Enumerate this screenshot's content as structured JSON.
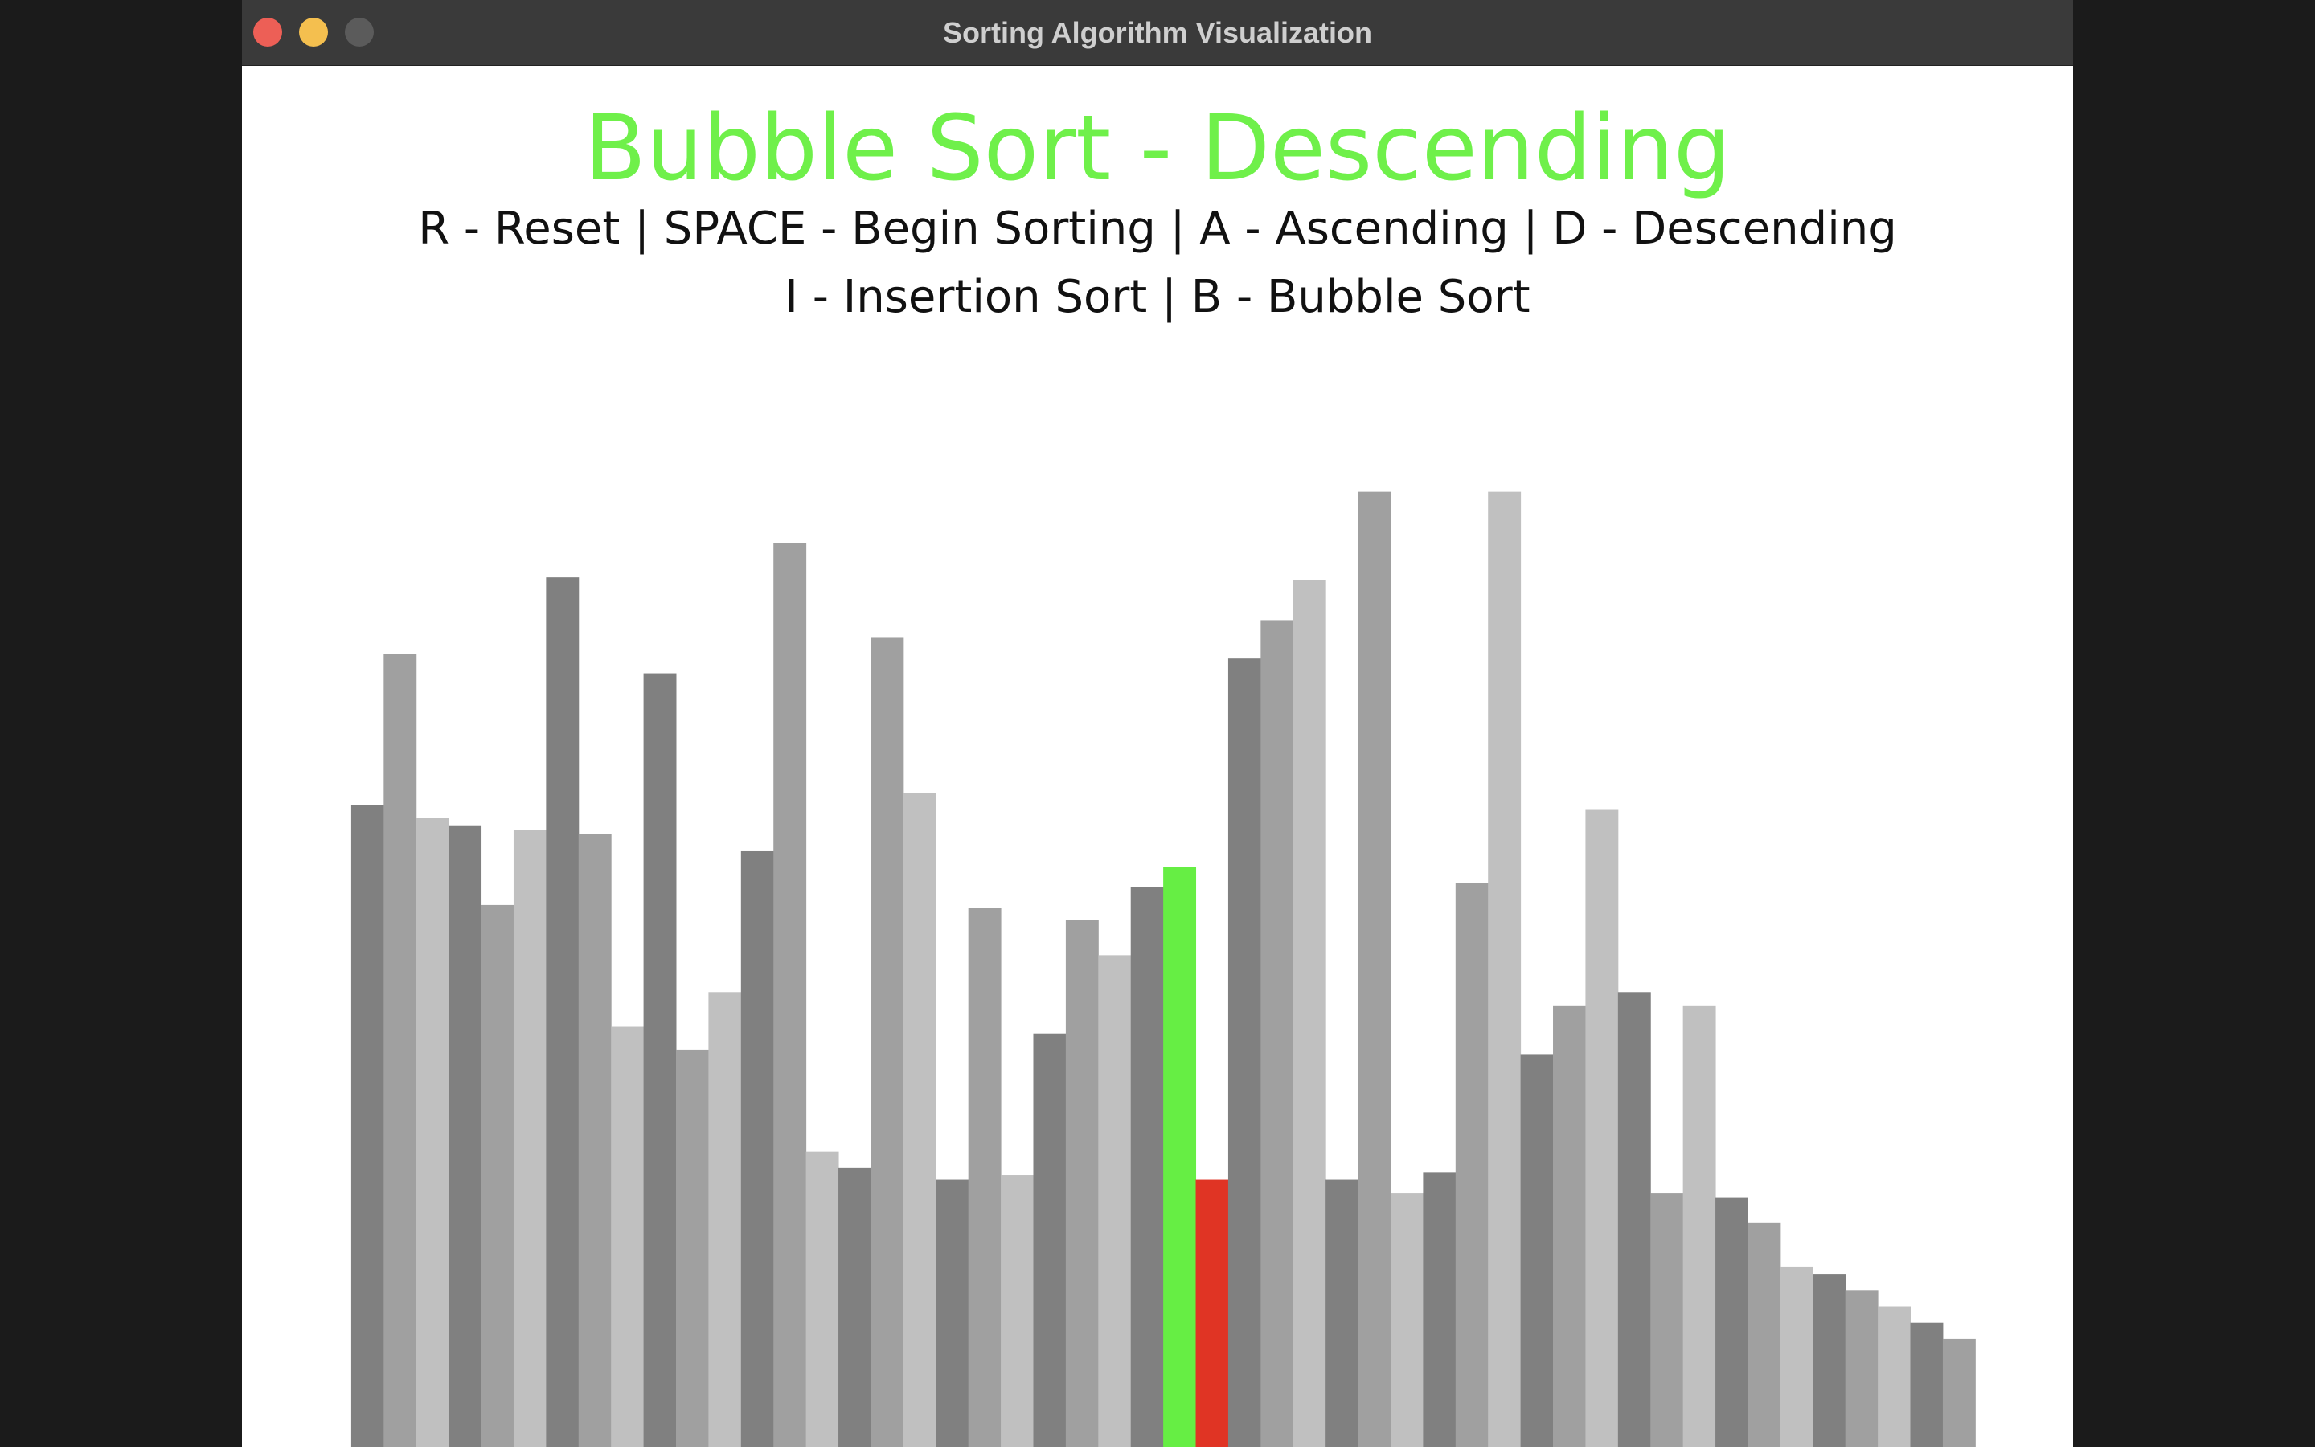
{
  "window": {
    "title": "Sorting Algorithm Visualization"
  },
  "heading": "Bubble Sort - Descending",
  "instructions": [
    "R - Reset | SPACE - Begin Sorting | A - Ascending | D - Descending",
    "I - Insertion Sort | B - Bubble Sort"
  ],
  "chart_data": {
    "type": "bar",
    "values": [
      435,
      537,
      426,
      421,
      367,
      418,
      589,
      415,
      285,
      524,
      269,
      308,
      404,
      612,
      200,
      189,
      548,
      443,
      181,
      365,
      184,
      280,
      357,
      333,
      379,
      393,
      181,
      534,
      560,
      587,
      181,
      647,
      172,
      186,
      382,
      647,
      266,
      299,
      432,
      308,
      172,
      299,
      169,
      152,
      122,
      117,
      106,
      95,
      84,
      73
    ],
    "colors": [
      "#808080",
      "#a0a0a0",
      "#c0c0c0",
      "#808080",
      "#a0a0a0",
      "#c0c0c0",
      "#808080",
      "#a0a0a0",
      "#c0c0c0",
      "#808080",
      "#a0a0a0",
      "#c0c0c0",
      "#808080",
      "#a0a0a0",
      "#c0c0c0",
      "#808080",
      "#a0a0a0",
      "#c0c0c0",
      "#808080",
      "#a0a0a0",
      "#c0c0c0",
      "#808080",
      "#a0a0a0",
      "#c0c0c0",
      "#808080",
      "#66ee44",
      "#e03424",
      "#808080",
      "#a0a0a0",
      "#c0c0c0",
      "#808080",
      "#a0a0a0",
      "#c0c0c0",
      "#808080",
      "#a0a0a0",
      "#c0c0c0",
      "#808080",
      "#a0a0a0",
      "#c0c0c0",
      "#808080",
      "#a0a0a0",
      "#c0c0c0",
      "#808080",
      "#a0a0a0",
      "#c0c0c0",
      "#808080",
      "#a0a0a0",
      "#c0c0c0",
      "#808080",
      "#a0a0a0"
    ]
  }
}
